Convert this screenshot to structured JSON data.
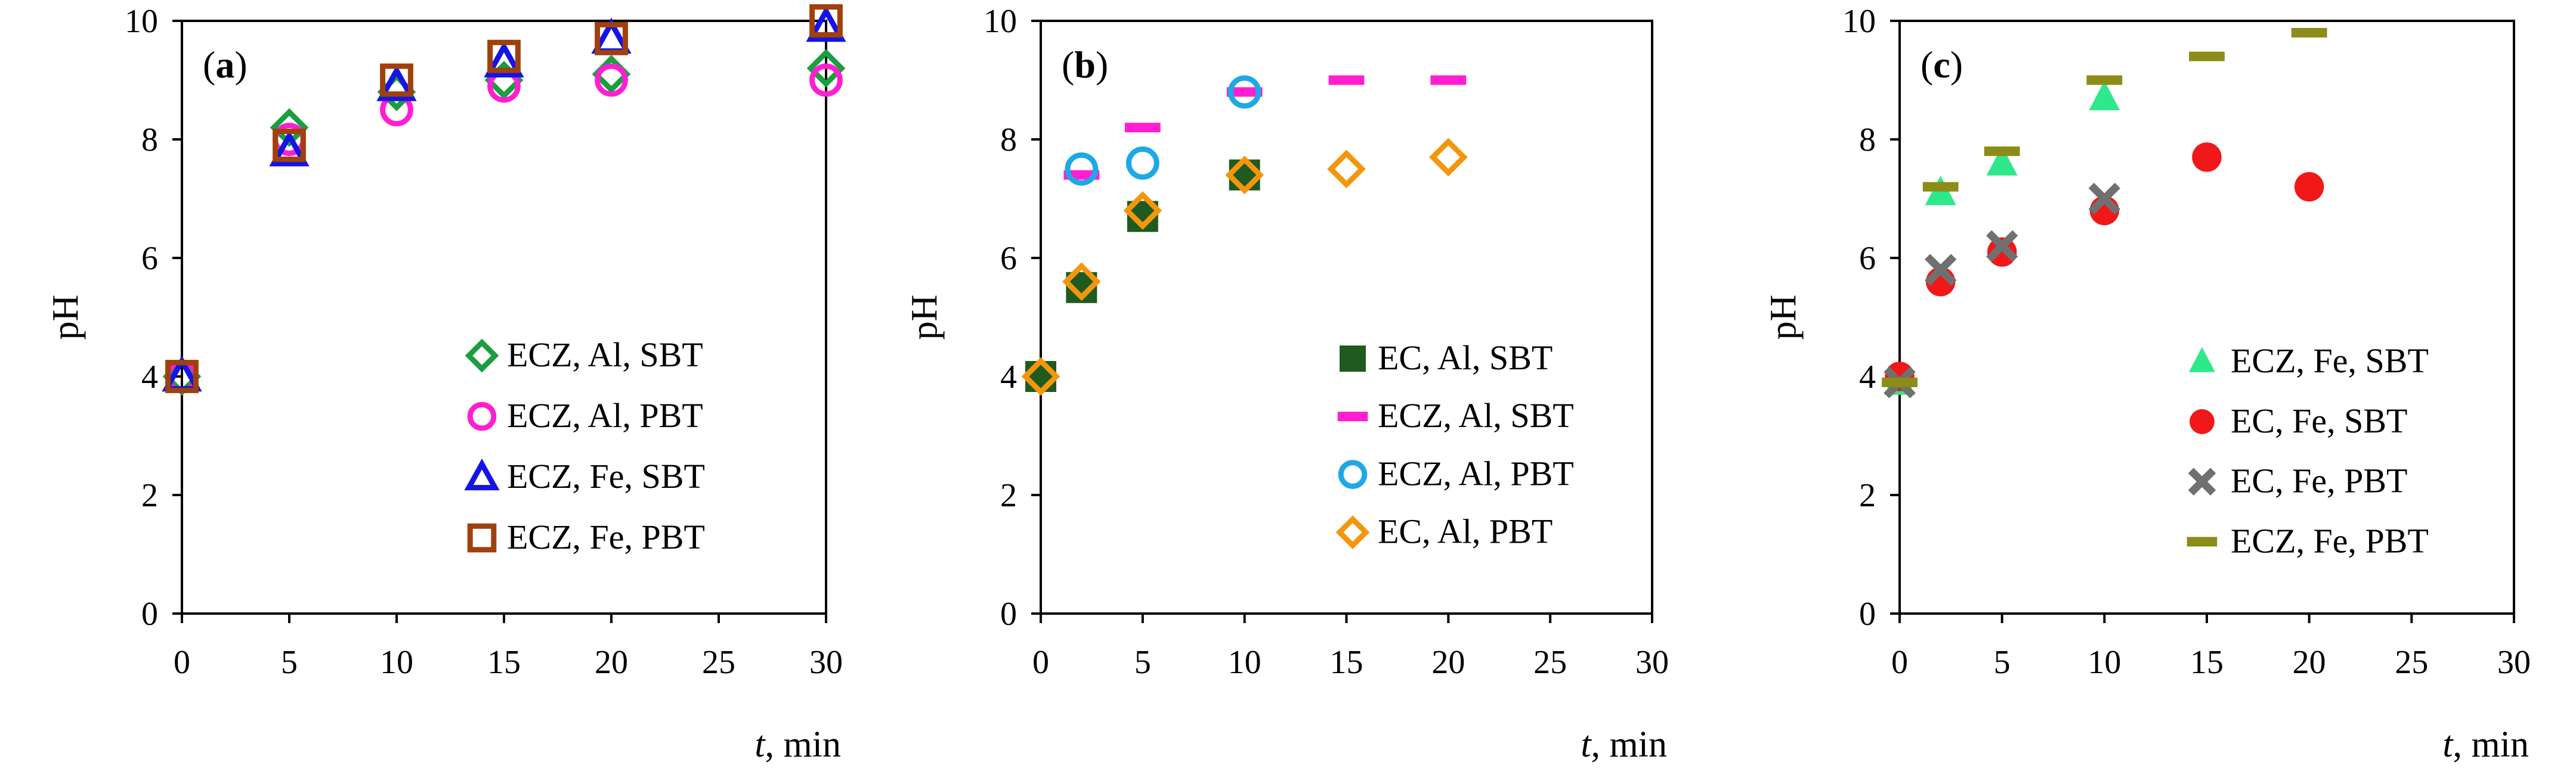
{
  "figure": {
    "description_free": true
  },
  "chart_data": [
    {
      "type": "scatter",
      "panel_tag": "a",
      "xlabel_italic": "t",
      "xlabel_rest": ", min",
      "ylabel": "pH",
      "xlim": [
        0,
        30
      ],
      "ylim": [
        0,
        10
      ],
      "xticks": [
        0,
        5,
        10,
        15,
        20,
        25,
        30
      ],
      "yticks": [
        0,
        2,
        4,
        6,
        8,
        10
      ],
      "legend_position": "bottom-right",
      "series": [
        {
          "name": "ECZ, Al, SBT",
          "marker": "diamond-open",
          "color": "#1a9e3f",
          "x": [
            0,
            5,
            10,
            15,
            20,
            30
          ],
          "y": [
            4.0,
            8.2,
            8.8,
            9.0,
            9.1,
            9.2
          ]
        },
        {
          "name": "ECZ, Al, PBT",
          "marker": "circle-open",
          "color": "#ff1fd1",
          "x": [
            0,
            5,
            10,
            15,
            20,
            30
          ],
          "y": [
            4.0,
            8.0,
            8.5,
            8.9,
            9.0,
            9.0
          ]
        },
        {
          "name": "ECZ, Fe, SBT",
          "marker": "triangle-open",
          "color": "#1414e6",
          "x": [
            0,
            5,
            10,
            15,
            20,
            30
          ],
          "y": [
            4.0,
            7.8,
            8.9,
            9.3,
            9.7,
            9.9
          ]
        },
        {
          "name": "ECZ, Fe, PBT",
          "marker": "square-open",
          "color": "#a0400d",
          "x": [
            0,
            5,
            10,
            15,
            20,
            30
          ],
          "y": [
            4.0,
            7.9,
            9.0,
            9.4,
            9.7,
            10.0
          ]
        }
      ]
    },
    {
      "type": "scatter",
      "panel_tag": "b",
      "xlabel_italic": "t",
      "xlabel_rest": ", min",
      "ylabel": "pH",
      "xlim": [
        0,
        30
      ],
      "ylim": [
        0,
        10
      ],
      "xticks": [
        0,
        5,
        10,
        15,
        20,
        25,
        30
      ],
      "yticks": [
        0,
        2,
        4,
        6,
        8,
        10
      ],
      "legend_position": "bottom-right",
      "series": [
        {
          "name": "EC, Al, SBT",
          "marker": "square-filled",
          "color": "#1f5a1f",
          "x": [
            0,
            2,
            5,
            10
          ],
          "y": [
            4.0,
            5.5,
            6.7,
            7.4
          ]
        },
        {
          "name": "ECZ, Al, SBT",
          "marker": "dash",
          "color": "#ff1fd1",
          "x": [
            2,
            5,
            10,
            15,
            20
          ],
          "y": [
            7.4,
            8.2,
            8.8,
            9.0,
            9.0
          ]
        },
        {
          "name": "ECZ, Al, PBT",
          "marker": "circle-open",
          "color": "#1ea8e6",
          "x": [
            2,
            5,
            10
          ],
          "y": [
            7.5,
            7.6,
            8.8
          ]
        },
        {
          "name": "EC, Al, PBT",
          "marker": "diamond-open",
          "color": "#f4960c",
          "x": [
            0,
            2,
            5,
            10,
            15,
            20
          ],
          "y": [
            4.0,
            5.6,
            6.8,
            7.4,
            7.5,
            7.7
          ]
        }
      ]
    },
    {
      "type": "scatter",
      "panel_tag": "c",
      "xlabel_italic": "t",
      "xlabel_rest": ", min",
      "ylabel": "pH",
      "xlim": [
        0,
        30
      ],
      "ylim": [
        0,
        10
      ],
      "xticks": [
        0,
        5,
        10,
        15,
        20,
        25,
        30
      ],
      "yticks": [
        0,
        2,
        4,
        6,
        8,
        10
      ],
      "legend_position": "bottom-right",
      "series": [
        {
          "name": "ECZ, Fe, SBT",
          "marker": "triangle-filled",
          "color": "#2ee88a",
          "x": [
            0,
            2,
            5,
            10
          ],
          "y": [
            3.9,
            7.1,
            7.6,
            8.7
          ]
        },
        {
          "name": "EC, Fe, SBT",
          "marker": "circle-filled",
          "color": "#f01818",
          "x": [
            0,
            2,
            5,
            10,
            15,
            20
          ],
          "y": [
            4.0,
            5.6,
            6.1,
            6.8,
            7.7,
            7.2
          ]
        },
        {
          "name": "EC, Fe, PBT",
          "marker": "x",
          "color": "#707070",
          "x": [
            0,
            2,
            5,
            10
          ],
          "y": [
            3.9,
            5.8,
            6.2,
            7.0
          ]
        },
        {
          "name": "ECZ, Fe, PBT",
          "marker": "dash",
          "color": "#8c8c18",
          "x": [
            0,
            2,
            5,
            10,
            15,
            20
          ],
          "y": [
            3.9,
            7.2,
            7.8,
            9.0,
            9.4,
            9.8
          ]
        }
      ]
    }
  ]
}
